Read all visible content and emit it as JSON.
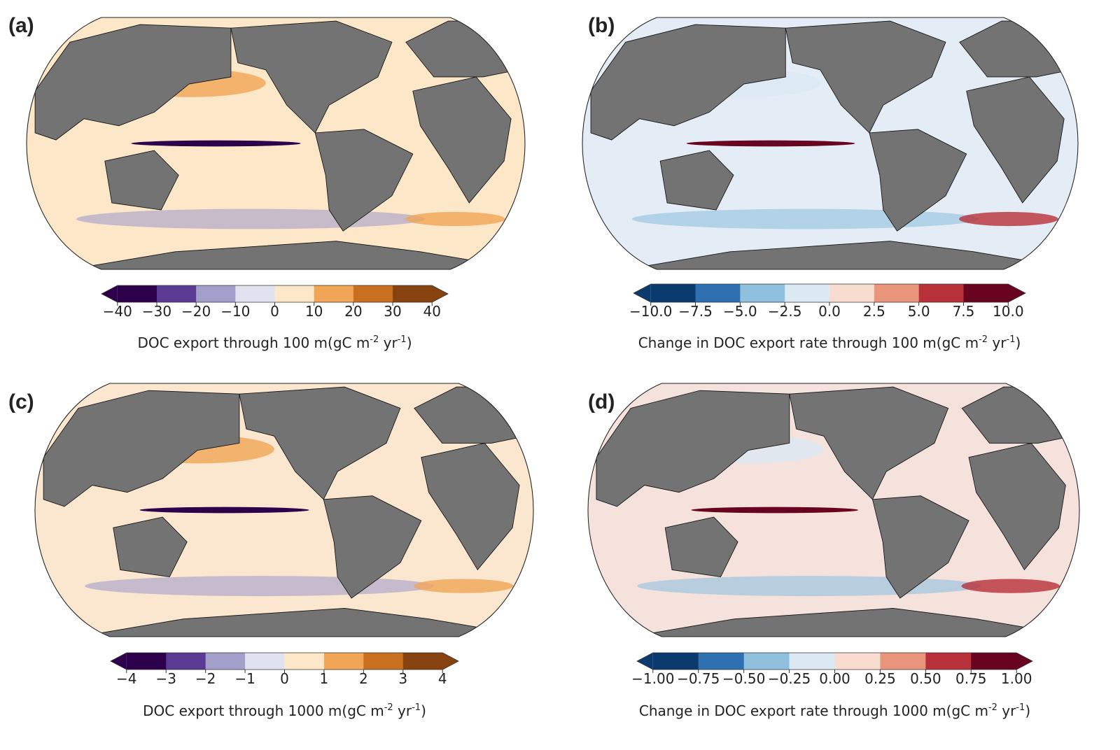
{
  "panels": [
    {
      "label": "(a)",
      "title": "DOC export through 100 m",
      "units": [
        "(gC m",
        "-2",
        " yr",
        "-1",
        ")"
      ],
      "colorbar": {
        "colors": [
          "#2d004b",
          "#5a3a92",
          "#a39fcb",
          "#e1e2ef",
          "#fde7c9",
          "#f0a656",
          "#c8701f",
          "#86420f"
        ],
        "ticks": [
          {
            "value": -40,
            "label": "−40"
          },
          {
            "value": -30,
            "label": "−30"
          },
          {
            "value": -20,
            "label": "−20"
          },
          {
            "value": -10,
            "label": "−10"
          },
          0,
          10,
          20,
          30,
          40
        ]
      },
      "ocean": "#fde7c9"
    },
    {
      "label": "(b)",
      "title": "Change in DOC export rate through 100 m",
      "units": [
        "(gC m",
        "-2",
        " yr",
        "-1",
        ")"
      ],
      "colorbar": {
        "colors": [
          "#0b3a6e",
          "#2f71b0",
          "#8fc0de",
          "#dbe9f3",
          "#f9dcd0",
          "#e9957b",
          "#b8303a",
          "#680420"
        ],
        "ticks": [
          {
            "value": -10,
            "label": "−10.0"
          },
          {
            "value": -7.5,
            "label": "−7.5"
          },
          {
            "value": -5,
            "label": "−5.0"
          },
          {
            "value": -2.5,
            "label": "−2.5"
          },
          {
            "value": 0,
            "label": "0.0"
          },
          2.5,
          {
            "value": 5,
            "label": "5.0"
          },
          7.5,
          {
            "value": 10,
            "label": "10.0"
          }
        ]
      },
      "ocean": "#e4edf5"
    },
    {
      "label": "(c)",
      "title": "DOC export through 1000 m",
      "units": [
        "(gC m",
        "-2",
        " yr",
        "-1",
        ")"
      ],
      "colorbar": {
        "colors": [
          "#2d004b",
          "#5a3a92",
          "#a39fcb",
          "#e1e2ef",
          "#fde7c9",
          "#f0a656",
          "#c8701f",
          "#86420f"
        ],
        "ticks": [
          {
            "value": -4,
            "label": "−4"
          },
          {
            "value": -3,
            "label": "−3"
          },
          {
            "value": -2,
            "label": "−2"
          },
          {
            "value": -1,
            "label": "−1"
          },
          0,
          1,
          2,
          3,
          4
        ]
      },
      "ocean": "#fbe6cf"
    },
    {
      "label": "(d)",
      "title": "Change in DOC export rate through 1000 m",
      "units": [
        "(gC m",
        "-2",
        " yr",
        "-1",
        ")"
      ],
      "colorbar": {
        "colors": [
          "#0b3a6e",
          "#2f71b0",
          "#8fc0de",
          "#dbe9f3",
          "#f9dcd0",
          "#e9957b",
          "#b8303a",
          "#680420"
        ],
        "ticks": [
          {
            "value": -1,
            "label": "−1.00"
          },
          {
            "value": -0.75,
            "label": "−0.75"
          },
          {
            "value": -0.5,
            "label": "−0.50"
          },
          {
            "value": -0.25,
            "label": "−0.25"
          },
          {
            "value": 0,
            "label": "0.00"
          },
          0.25,
          {
            "value": 0.5,
            "label": "0.50"
          },
          0.75,
          {
            "value": 1,
            "label": "1.00"
          }
        ]
      },
      "ocean": "#f6e2dc"
    }
  ]
}
